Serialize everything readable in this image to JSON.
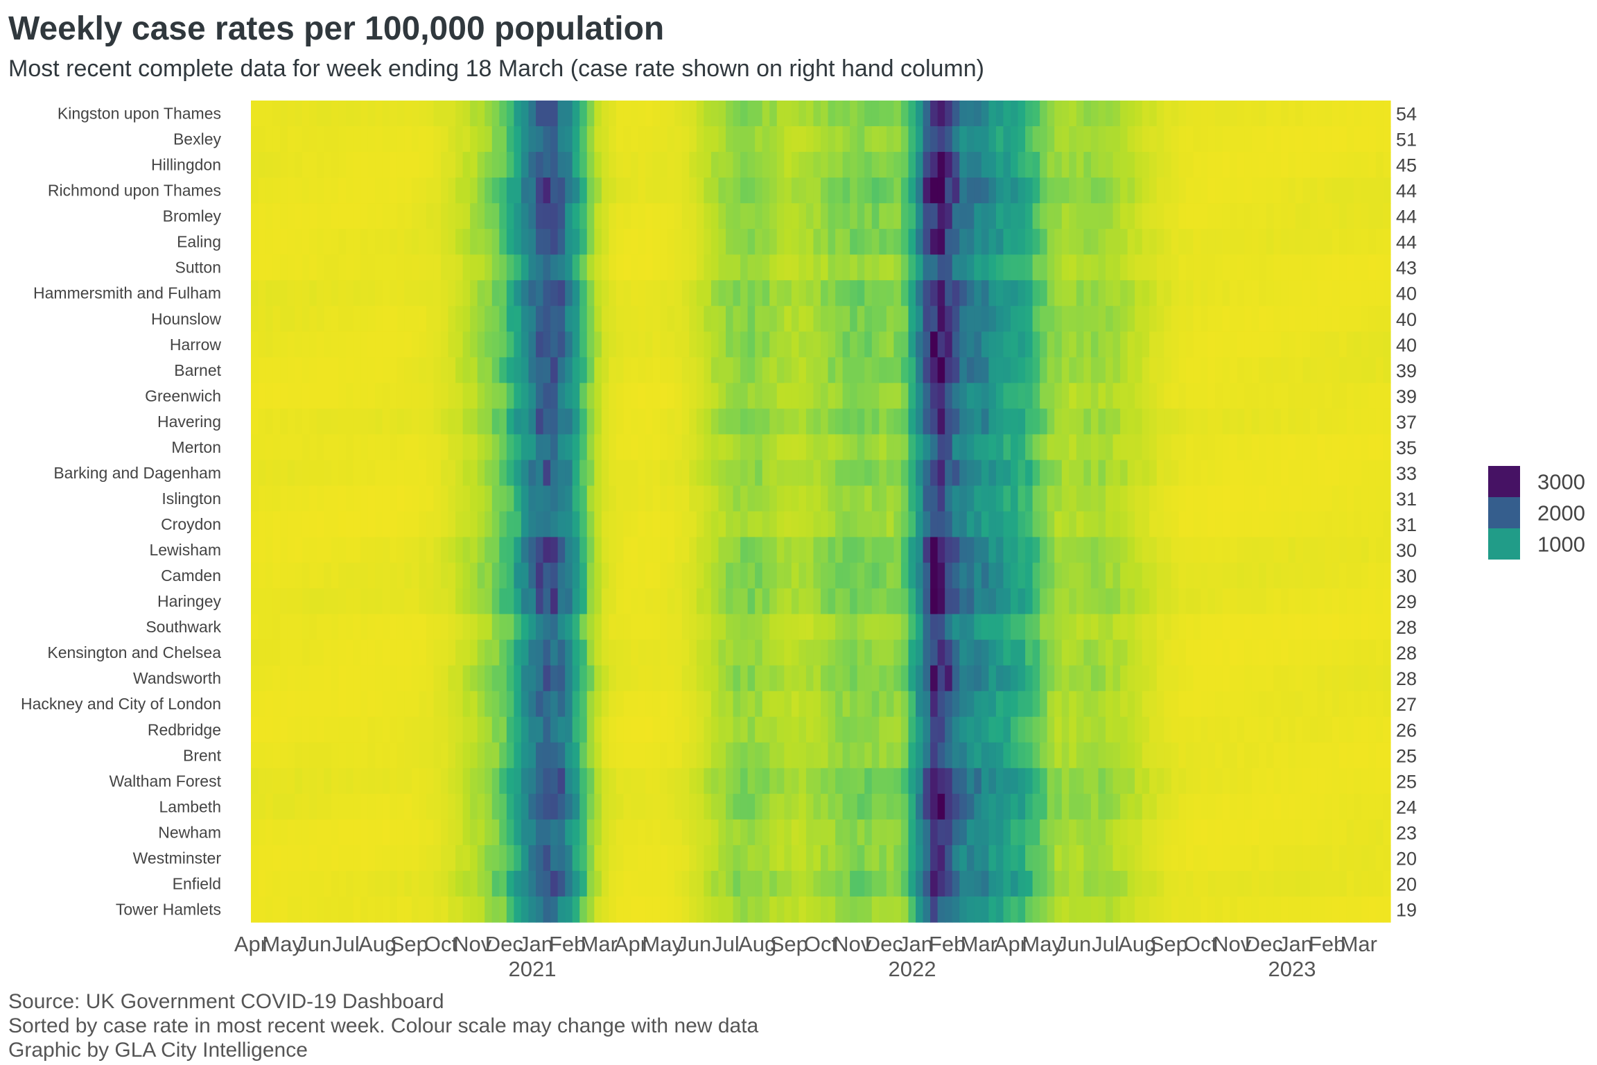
{
  "chart_data": {
    "type": "heatmap",
    "title": "Weekly case rates per 100,000 population",
    "subtitle": "Most recent complete data for week ending 18 March (case rate shown on right hand column)",
    "x_tick_labels": [
      "Apr",
      "May",
      "Jun",
      "Jul",
      "Aug",
      "Sep",
      "Oct",
      "Nov",
      "Dec",
      "Jan",
      "Feb",
      "Mar",
      "Apr",
      "May",
      "Jun",
      "Jul",
      "Aug",
      "Sep",
      "Oct",
      "Nov",
      "Dec",
      "Jan",
      "Feb",
      "Mar",
      "Apr",
      "May",
      "Jun",
      "Jul",
      "Aug",
      "Sep",
      "Oct",
      "Nov",
      "Dec",
      "Jan",
      "Feb",
      "Mar"
    ],
    "year_labels": [
      {
        "label": "2021",
        "month_index": 9
      },
      {
        "label": "2022",
        "month_index": 21
      },
      {
        "label": "2023",
        "month_index": 33
      }
    ],
    "rows": [
      {
        "area": "Kingston upon Thames",
        "latest": 54
      },
      {
        "area": "Bexley",
        "latest": 51
      },
      {
        "area": "Hillingdon",
        "latest": 45
      },
      {
        "area": "Richmond upon Thames",
        "latest": 44
      },
      {
        "area": "Bromley",
        "latest": 44
      },
      {
        "area": "Ealing",
        "latest": 44
      },
      {
        "area": "Sutton",
        "latest": 43
      },
      {
        "area": "Hammersmith and Fulham",
        "latest": 40
      },
      {
        "area": "Hounslow",
        "latest": 40
      },
      {
        "area": "Harrow",
        "latest": 40
      },
      {
        "area": "Barnet",
        "latest": 39
      },
      {
        "area": "Greenwich",
        "latest": 39
      },
      {
        "area": "Havering",
        "latest": 37
      },
      {
        "area": "Merton",
        "latest": 35
      },
      {
        "area": "Barking and Dagenham",
        "latest": 33
      },
      {
        "area": "Islington",
        "latest": 31
      },
      {
        "area": "Croydon",
        "latest": 31
      },
      {
        "area": "Lewisham",
        "latest": 30
      },
      {
        "area": "Camden",
        "latest": 30
      },
      {
        "area": "Haringey",
        "latest": 29
      },
      {
        "area": "Southwark",
        "latest": 28
      },
      {
        "area": "Kensington and Chelsea",
        "latest": 28
      },
      {
        "area": "Wandsworth",
        "latest": 28
      },
      {
        "area": "Hackney and City of London",
        "latest": 27
      },
      {
        "area": "Redbridge",
        "latest": 26
      },
      {
        "area": "Brent",
        "latest": 25
      },
      {
        "area": "Waltham Forest",
        "latest": 25
      },
      {
        "area": "Lambeth",
        "latest": 24
      },
      {
        "area": "Newham",
        "latest": 23
      },
      {
        "area": "Westminster",
        "latest": 20
      },
      {
        "area": "Enfield",
        "latest": 20
      },
      {
        "area": "Tower Hamlets",
        "latest": 19
      }
    ],
    "weeks": 156,
    "start_month_index": 0,
    "waves": [
      {
        "center_week": 40.5,
        "width": 2.8,
        "peak": 1700
      },
      {
        "center_week": 36.0,
        "width": 5.0,
        "peak": 350
      },
      {
        "center_week": 67.0,
        "width": 4.0,
        "peak": 280
      },
      {
        "center_week": 83.0,
        "width": 6.0,
        "peak": 330
      },
      {
        "center_week": 93.5,
        "width": 2.0,
        "peak": 2300
      },
      {
        "center_week": 98.5,
        "width": 2.5,
        "peak": 1050
      },
      {
        "center_week": 104.0,
        "width": 3.0,
        "peak": 700
      },
      {
        "center_week": 115.0,
        "width": 5.0,
        "peak": 230
      }
    ],
    "legend": {
      "values": [
        3000,
        2000,
        1000
      ],
      "labels": [
        "3000",
        "2000",
        "1000"
      ]
    },
    "colorscale": "viridis",
    "value_max": 3200
  },
  "footer": {
    "source": "Source: UK Government COVID-19 Dashboard",
    "note": "Sorted by case rate in most recent week. Colour scale may change with new data",
    "credit": "Graphic by GLA City Intelligence"
  }
}
